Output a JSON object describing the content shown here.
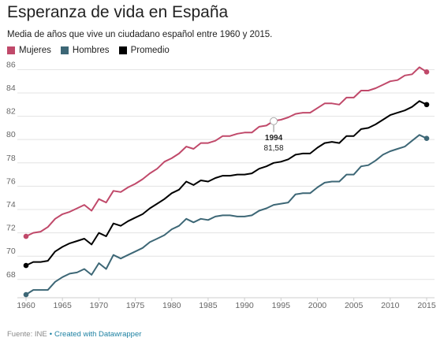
{
  "header": {
    "title": "Esperanza de vida en España",
    "subtitle": "Media de años que vive un ciudadano español entre 1960 y 2015."
  },
  "footer": {
    "source": "Fuente: INE",
    "credit": "Created with Datawrapper"
  },
  "colors": {
    "mujeres": "#c0496a",
    "hombres": "#3d6776",
    "promedio": "#000000",
    "grid": "#e3e3e3",
    "axis_text": "#666666"
  },
  "chart_data": {
    "type": "line",
    "x": [
      1960,
      1961,
      1962,
      1963,
      1964,
      1965,
      1966,
      1967,
      1968,
      1969,
      1970,
      1971,
      1972,
      1973,
      1974,
      1975,
      1976,
      1977,
      1978,
      1979,
      1980,
      1981,
      1982,
      1983,
      1984,
      1985,
      1986,
      1987,
      1988,
      1989,
      1990,
      1991,
      1992,
      1993,
      1994,
      1995,
      1996,
      1997,
      1998,
      1999,
      2000,
      2001,
      2002,
      2003,
      2004,
      2005,
      2006,
      2007,
      2008,
      2009,
      2010,
      2011,
      2012,
      2013,
      2014,
      2015
    ],
    "series": [
      {
        "name": "Mujeres",
        "color": "#c0496a",
        "values": [
          71.7,
          72.0,
          72.1,
          72.5,
          73.2,
          73.6,
          73.8,
          74.1,
          74.4,
          73.9,
          74.9,
          74.6,
          75.6,
          75.5,
          75.9,
          76.2,
          76.6,
          77.1,
          77.5,
          78.1,
          78.4,
          78.8,
          79.4,
          79.2,
          79.7,
          79.7,
          79.9,
          80.3,
          80.3,
          80.5,
          80.6,
          80.6,
          81.1,
          81.2,
          81.6,
          81.7,
          81.9,
          82.2,
          82.3,
          82.3,
          82.7,
          83.1,
          83.1,
          83.0,
          83.6,
          83.6,
          84.2,
          84.2,
          84.4,
          84.7,
          85.0,
          85.1,
          85.5,
          85.6,
          86.2,
          85.8
        ]
      },
      {
        "name": "Hombres",
        "color": "#3d6776",
        "values": [
          66.7,
          67.1,
          67.1,
          67.1,
          67.8,
          68.2,
          68.5,
          68.6,
          68.9,
          68.4,
          69.4,
          68.9,
          70.1,
          69.8,
          70.1,
          70.4,
          70.7,
          71.2,
          71.5,
          71.8,
          72.3,
          72.6,
          73.2,
          72.9,
          73.2,
          73.1,
          73.4,
          73.5,
          73.5,
          73.4,
          73.4,
          73.5,
          73.9,
          74.1,
          74.4,
          74.5,
          74.6,
          75.3,
          75.4,
          75.4,
          75.9,
          76.3,
          76.4,
          76.4,
          77.0,
          77.0,
          77.7,
          77.8,
          78.2,
          78.7,
          79.0,
          79.2,
          79.4,
          79.9,
          80.4,
          80.1
        ]
      },
      {
        "name": "Promedio",
        "color": "#000000",
        "values": [
          69.2,
          69.5,
          69.5,
          69.6,
          70.4,
          70.8,
          71.1,
          71.3,
          71.5,
          71.0,
          72.0,
          71.7,
          72.8,
          72.6,
          73.0,
          73.3,
          73.6,
          74.1,
          74.5,
          74.9,
          75.4,
          75.7,
          76.4,
          76.1,
          76.5,
          76.4,
          76.7,
          76.9,
          76.9,
          77.0,
          77.0,
          77.1,
          77.5,
          77.7,
          78.0,
          78.1,
          78.3,
          78.7,
          78.8,
          78.8,
          79.3,
          79.7,
          79.8,
          79.7,
          80.3,
          80.3,
          80.9,
          81.0,
          81.3,
          81.7,
          82.1,
          82.3,
          82.5,
          82.8,
          83.3,
          83.0
        ]
      }
    ],
    "ylim": [
      66.5,
      86.7
    ],
    "y_ticks": [
      68,
      70,
      72,
      74,
      76,
      78,
      80,
      82,
      84,
      86
    ],
    "x_ticks": [
      1960,
      1965,
      1970,
      1975,
      1980,
      1985,
      1990,
      1995,
      2000,
      2005,
      2010,
      2015
    ],
    "annotation": {
      "x": 1994,
      "year_label": "1994",
      "value_label": "81,58",
      "value": 81.58
    },
    "grid": true,
    "legend_position": "top-left"
  }
}
